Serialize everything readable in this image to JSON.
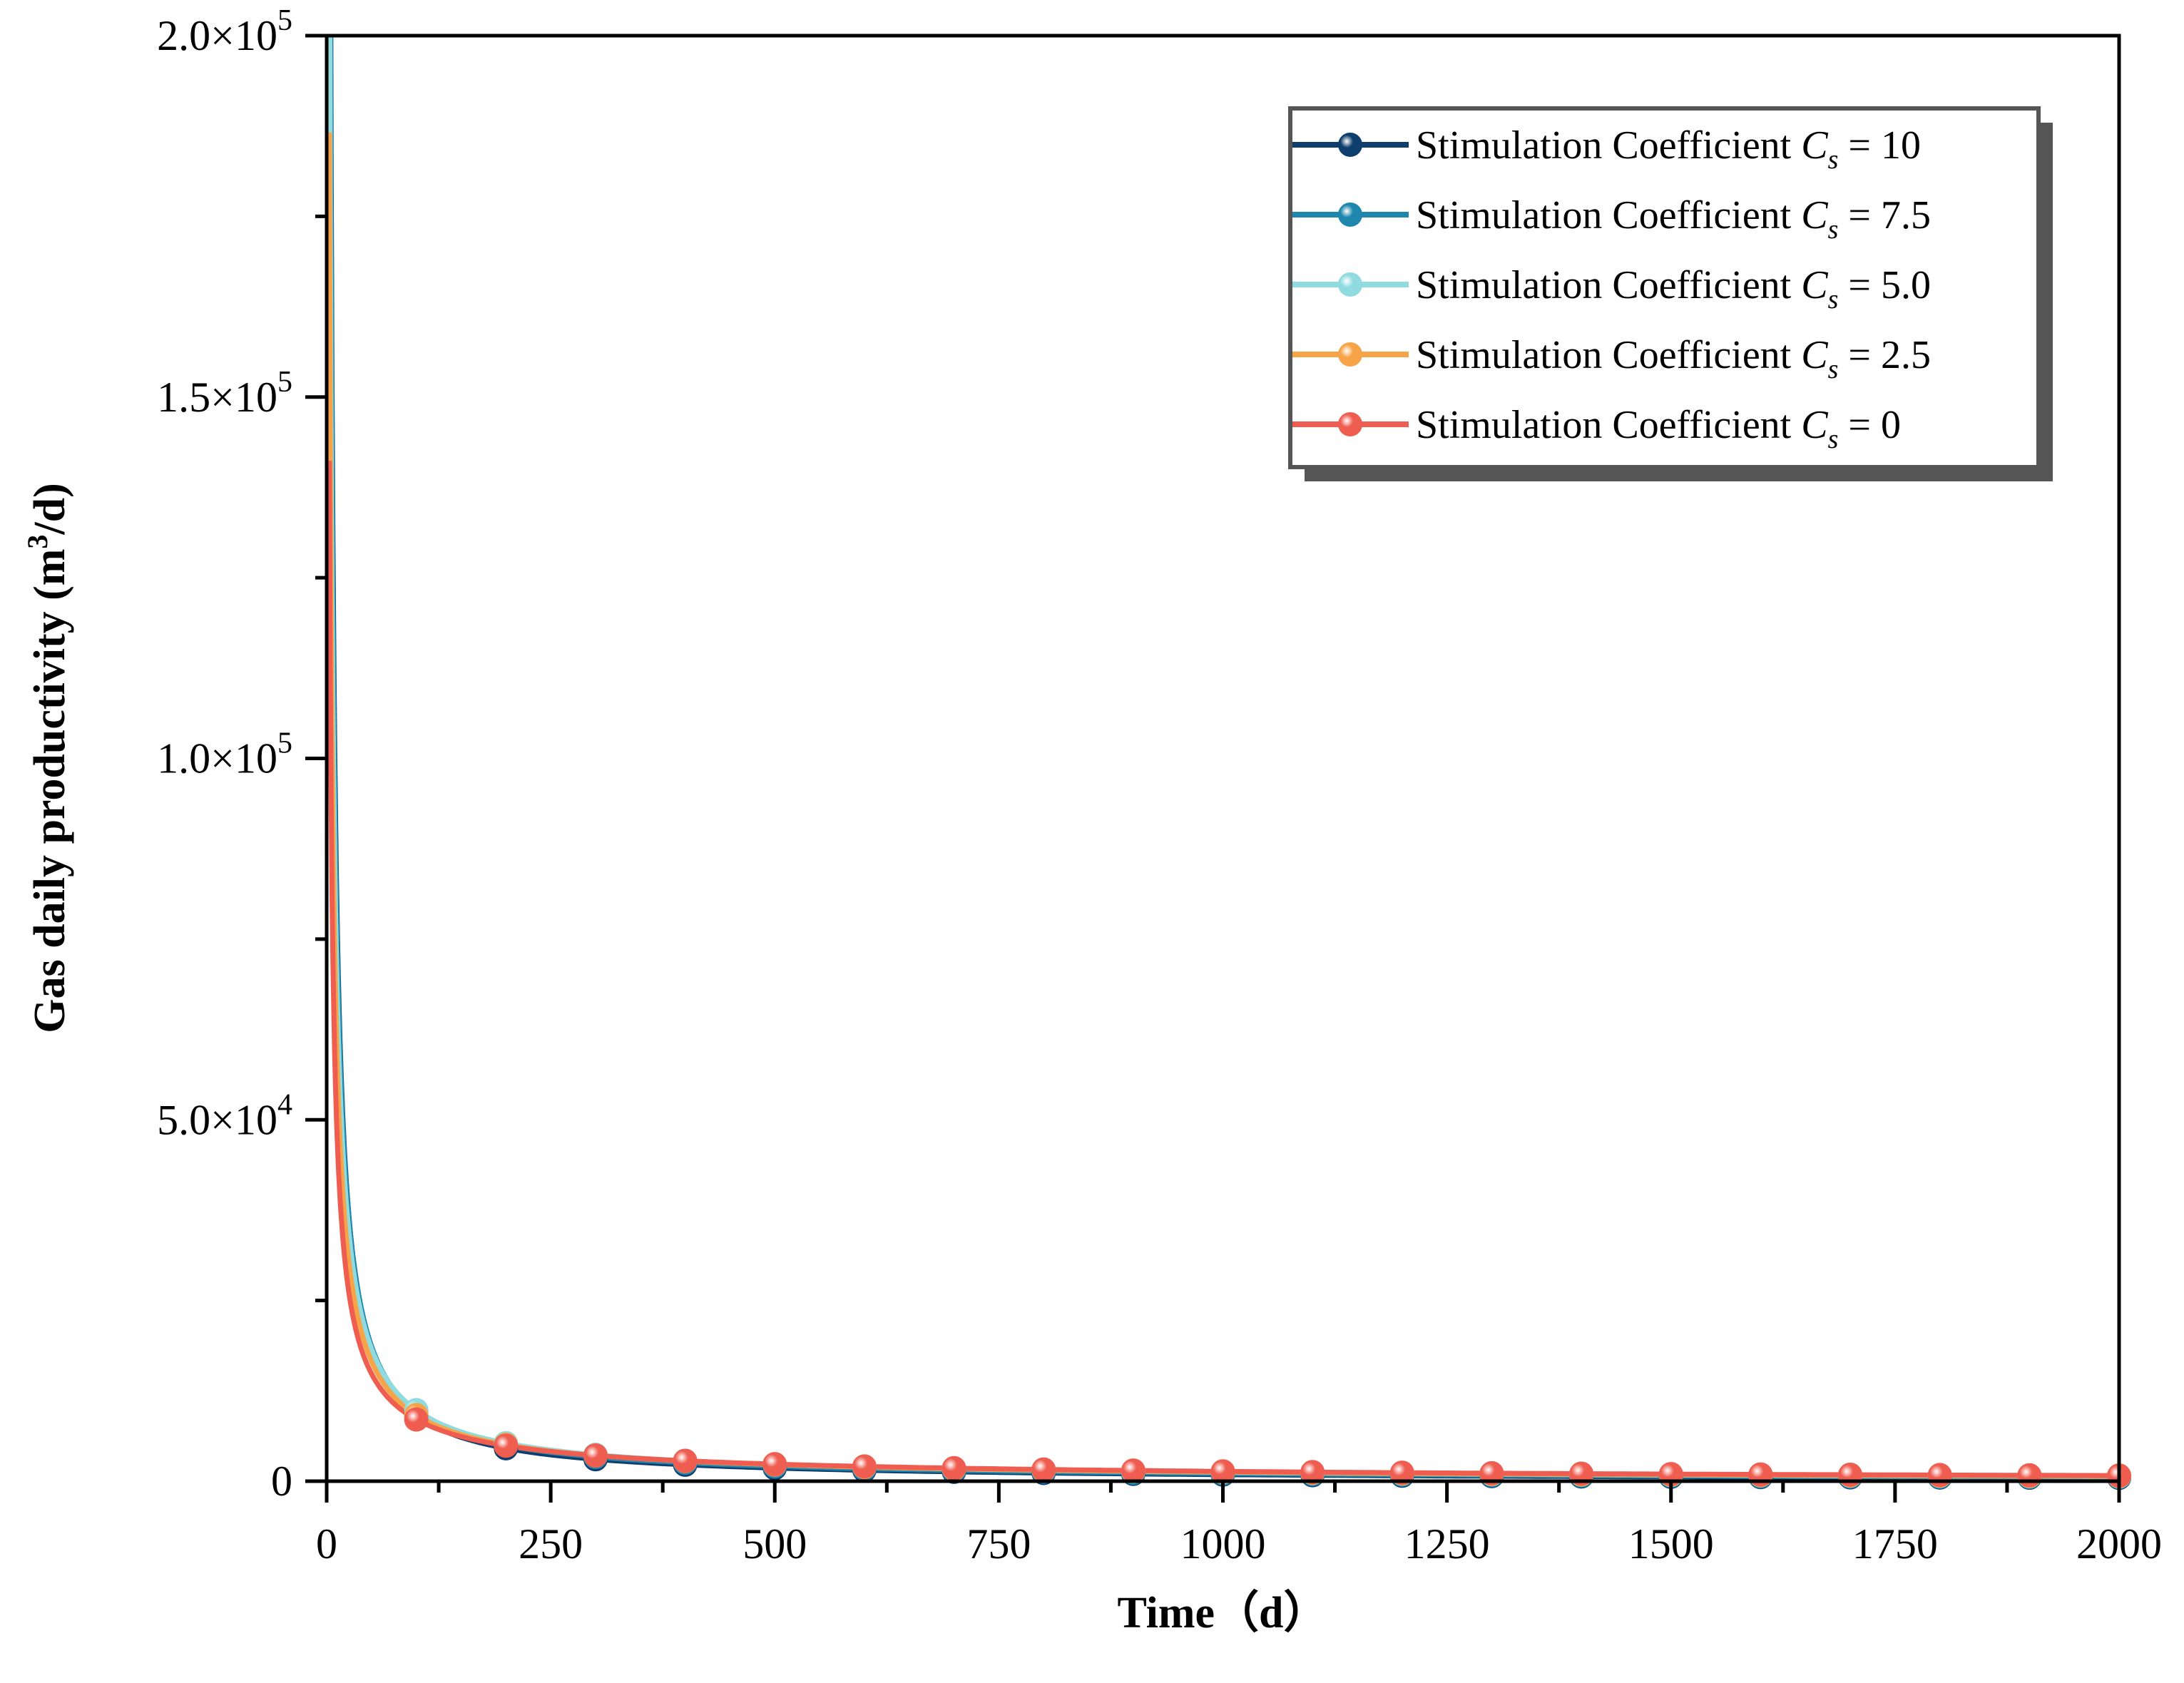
{
  "chart_data": {
    "type": "line",
    "title": "",
    "xlabel": "Time（d）",
    "ylabel": "Gas daily productivity (m3/d)",
    "ylabel_parts": {
      "prefix": "Gas daily productivity (m",
      "sup": "3",
      "suffix": "/d)"
    },
    "xlim": [
      0,
      2000
    ],
    "ylim": [
      0,
      200000
    ],
    "x_ticks": [
      0,
      250,
      500,
      750,
      1000,
      1250,
      1500,
      1750,
      2000
    ],
    "x_tick_labels": [
      "0",
      "250",
      "500",
      "750",
      "1000",
      "1250",
      "1500",
      "1750",
      "2000"
    ],
    "y_ticks": [
      0,
      50000,
      100000,
      150000,
      200000
    ],
    "y_tick_labels": [
      {
        "mant": "0",
        "exp": ""
      },
      {
        "mant": "5.0×10",
        "exp": "4"
      },
      {
        "mant": "1.0×10",
        "exp": "5"
      },
      {
        "mant": "1.5×10",
        "exp": "5"
      },
      {
        "mant": "2.0×10",
        "exp": "5"
      }
    ],
    "grid": false,
    "legend_position": "top-right",
    "x": [
      100,
      200,
      300,
      400,
      500,
      600,
      700,
      800,
      900,
      1000,
      1100,
      1200,
      1300,
      1400,
      1500,
      1600,
      1700,
      1800,
      1900,
      2000
    ],
    "series": [
      {
        "name": "Stimulation Coefficient Cs = 10",
        "label_prefix": "Stimulation Coefficient ",
        "label_var": "C",
        "label_sub": "s",
        "label_suffix": " = 10",
        "color": "#0e3e6d",
        "amplitude": 910000,
        "exponent": 0.9999
      },
      {
        "name": "Stimulation Coefficient Cs = 7.5",
        "label_prefix": "Stimulation Coefficient ",
        "label_var": "C",
        "label_sub": "s",
        "label_suffix": " = 7.5",
        "color": "#1f86ad",
        "amplitude": 800000,
        "exponent": 0.96
      },
      {
        "name": "Stimulation Coefficient Cs = 5.0",
        "label_prefix": "Stimulation Coefficient ",
        "label_var": "C",
        "label_sub": "s",
        "label_suffix": " = 5.0",
        "color": "#8fdbe0",
        "amplitude": 620000,
        "exponent": 0.9
      },
      {
        "name": "Stimulation Coefficient Cs = 2.5",
        "label_prefix": "Stimulation Coefficient ",
        "label_var": "C",
        "label_sub": "s",
        "label_suffix": " = 2.5",
        "color": "#f7a448",
        "amplitude": 480000,
        "exponent": 0.86
      },
      {
        "name": "Stimulation Coefficient Cs = 0",
        "label_prefix": "Stimulation Coefficient ",
        "label_var": "C",
        "label_sub": "s",
        "label_suffix": " = 0",
        "color": "#ef5d50",
        "amplitude": 340000,
        "exponent": 0.8
      }
    ]
  }
}
